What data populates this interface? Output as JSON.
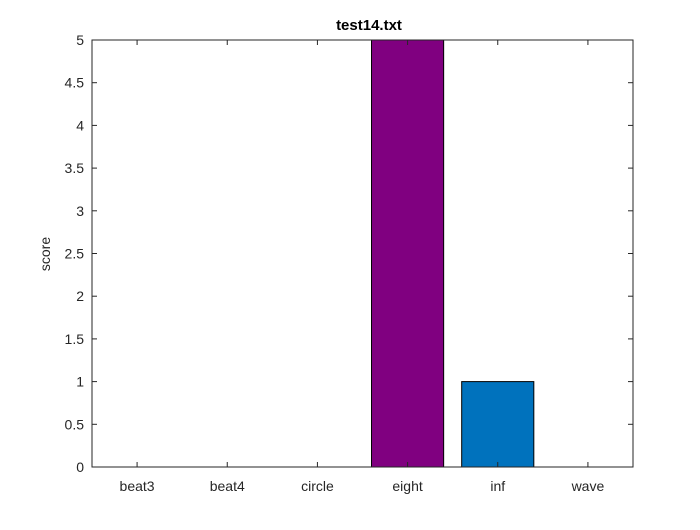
{
  "chart_data": {
    "type": "bar",
    "title": "test14.txt",
    "xlabel": "",
    "ylabel": "score",
    "categories": [
      "beat3",
      "beat4",
      "circle",
      "eight",
      "inf",
      "wave"
    ],
    "values": [
      0,
      0,
      0,
      5,
      1,
      0
    ],
    "bar_colors": [
      "#000000",
      "#000000",
      "#000000",
      "#800080",
      "#0072bd",
      "#000000"
    ],
    "ylim": [
      0,
      5
    ],
    "yticks": [
      "0",
      "0.5",
      "1",
      "1.5",
      "2",
      "2.5",
      "3",
      "3.5",
      "4",
      "4.5",
      "5"
    ],
    "grid": false,
    "legend": "none"
  }
}
